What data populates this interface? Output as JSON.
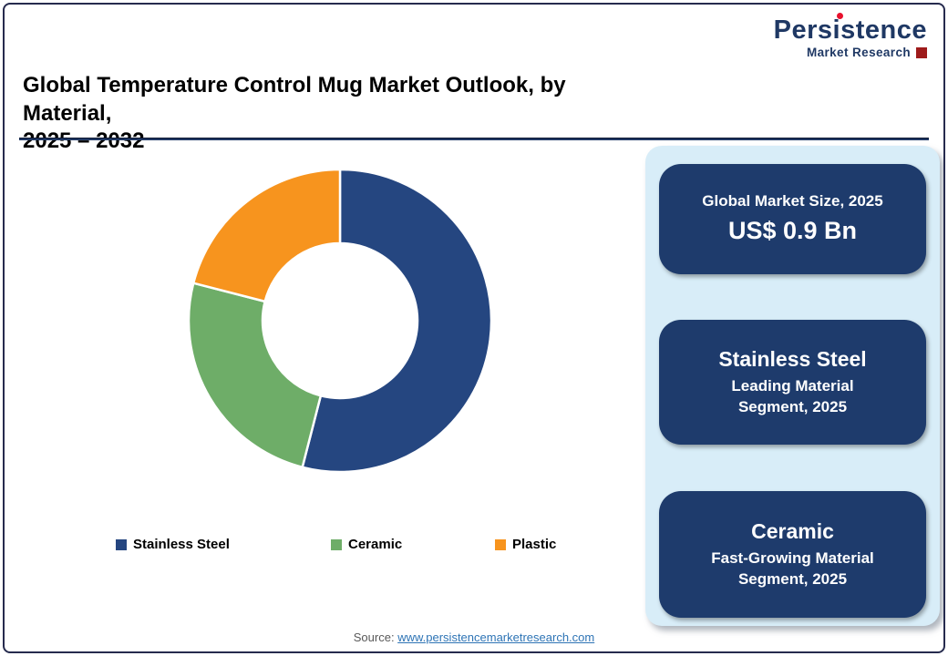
{
  "page": {
    "title_line1": "Global Temperature Control Mug Market Outlook, by Material,",
    "title_line2": "2025 – 2032",
    "source_label": "Source:",
    "source_link": "www.persistencemarketresearch.com"
  },
  "logo": {
    "name": "Persistence",
    "subtitle": "Market Research"
  },
  "chart_data": {
    "type": "pie",
    "donut": true,
    "title": "Global Temperature Control Mug Market Outlook, by Material, 2025 – 2032",
    "categories": [
      "Stainless Steel",
      "Ceramic",
      "Plastic"
    ],
    "values": [
      54,
      25,
      21
    ],
    "colors": [
      "#254680",
      "#6ead68",
      "#f7941e"
    ],
    "start_angle_deg": 0,
    "legend_position": "bottom",
    "data_labels": "none"
  },
  "sidebar": {
    "cards": [
      {
        "line1": "Global Market Size, 2025",
        "line2": "US$ 0.9 Bn"
      },
      {
        "line1": "Stainless Steel",
        "line2": "Leading Material Segment, 2025"
      },
      {
        "line1": "Ceramic",
        "line2": "Fast-Growing Material Segment, 2025"
      }
    ]
  }
}
